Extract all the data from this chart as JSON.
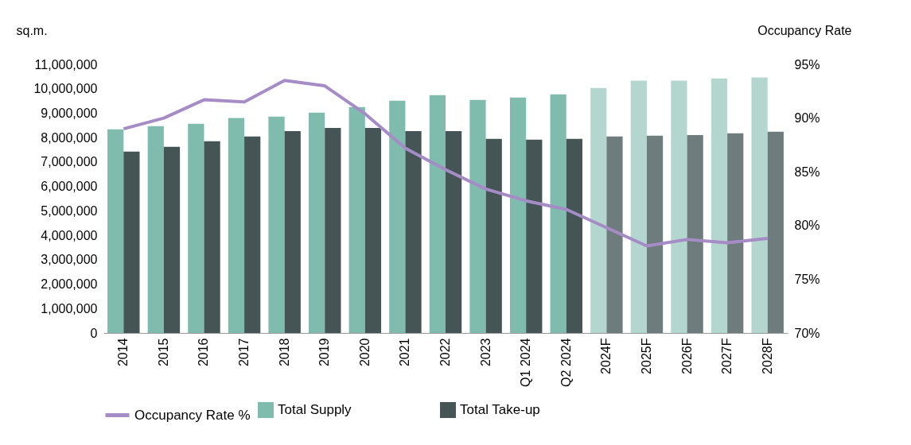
{
  "chart_data": {
    "type": "bar",
    "ylabel": "sq.m.",
    "y2label": "Occupancy Rate",
    "categories": [
      "2014",
      "2015",
      "2016",
      "2017",
      "2018",
      "2019",
      "2020",
      "2021",
      "2022",
      "2023",
      "Q1 2024",
      "Q2 2024",
      "2024F",
      "2025F",
      "2026F",
      "2027F",
      "2028F"
    ],
    "series": [
      {
        "name": "Total Supply",
        "color": "#80bcad",
        "colors": [
          "#80bcad",
          "#80bcad",
          "#80bcad",
          "#80bcad",
          "#80bcad",
          "#80bcad",
          "#80bcad",
          "#80bcad",
          "#80bcad",
          "#80bcad",
          "#80bcad",
          "#80bcad",
          "#b3d7ce",
          "#b3d7ce",
          "#b3d7ce",
          "#b3d7ce",
          "#b3d7ce"
        ],
        "values": [
          8340000,
          8470000,
          8570000,
          8800000,
          8860000,
          9020000,
          9250000,
          9510000,
          9740000,
          9540000,
          9640000,
          9770000,
          10030000,
          10330000,
          10330000,
          10420000,
          10460000
        ]
      },
      {
        "name": "Total Take-up",
        "color": "#455556",
        "colors": [
          "#455556",
          "#455556",
          "#455556",
          "#455556",
          "#455556",
          "#455556",
          "#455556",
          "#455556",
          "#455556",
          "#455556",
          "#455556",
          "#455556",
          "#6f7c7d",
          "#6f7c7d",
          "#6f7c7d",
          "#6f7c7d",
          "#6f7c7d"
        ],
        "values": [
          7430000,
          7620000,
          7850000,
          8050000,
          8270000,
          8400000,
          8400000,
          8270000,
          8270000,
          7950000,
          7920000,
          7950000,
          8050000,
          8080000,
          8100000,
          8180000,
          8240000
        ]
      },
      {
        "name": "Occupancy Rate %",
        "type": "line",
        "axis": "y2",
        "color": "#a58cc6",
        "values": [
          89.0,
          90.0,
          91.7,
          91.5,
          93.5,
          93.0,
          90.4,
          87.2,
          85.2,
          83.4,
          82.3,
          81.5,
          79.8,
          78.1,
          78.7,
          78.4,
          78.8
        ]
      }
    ],
    "ylim": [
      0,
      11000000
    ],
    "yticks": [
      0,
      {
        "value": 1000000,
        "label": "1,000,000"
      },
      {
        "value": 2000000,
        "label": "2,000,000"
      },
      {
        "value": 3000000,
        "label": "3,000,000"
      },
      {
        "value": 4000000,
        "label": "4,000,000"
      },
      {
        "value": 5000000,
        "label": "5,000,000"
      },
      {
        "value": 6000000,
        "label": "6,000,000"
      },
      {
        "value": 7000000,
        "label": "7,000,000"
      },
      {
        "value": 8000000,
        "label": "8,000,000"
      },
      {
        "value": 9000000,
        "label": "9,000,000"
      },
      {
        "value": 10000000,
        "label": "10,000,000"
      },
      {
        "value": 11000000,
        "label": "11,000,000"
      }
    ],
    "y2lim": [
      70,
      95
    ],
    "y2ticks": [
      {
        "value": 70,
        "label": "70%"
      },
      {
        "value": 75,
        "label": "75%"
      },
      {
        "value": 80,
        "label": "80%"
      },
      {
        "value": 85,
        "label": "85%"
      },
      {
        "value": 90,
        "label": "90%"
      },
      {
        "value": 95,
        "label": "95%"
      }
    ],
    "grid": false,
    "legend": "bottom",
    "line_style": "solid",
    "marker": "none"
  }
}
